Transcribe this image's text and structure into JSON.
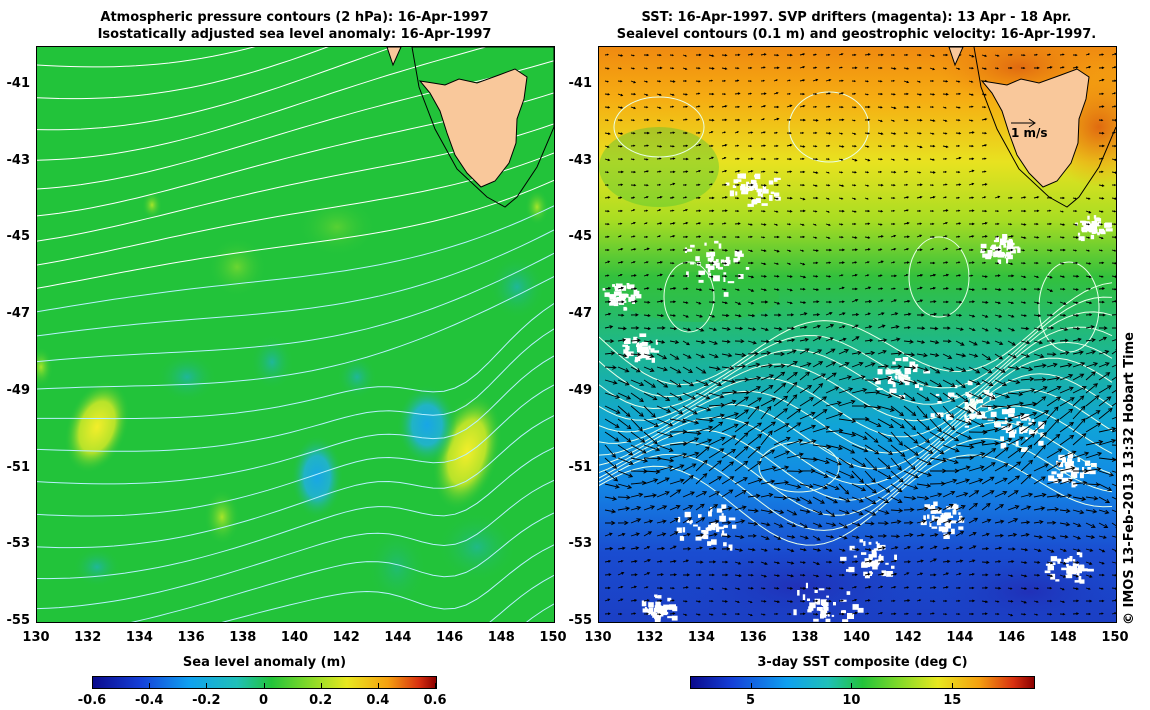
{
  "left_panel": {
    "title_line1": "Atmospheric pressure contours (2 hPa): 16-Apr-1997",
    "title_line2": "Isostatically adjusted sea level anomaly: 16-Apr-1997",
    "x_ticks": [
      "130",
      "132",
      "134",
      "136",
      "138",
      "140",
      "142",
      "144",
      "146",
      "148",
      "150"
    ],
    "y_ticks": [
      "-41",
      "-43",
      "-45",
      "-47",
      "-49",
      "-51",
      "-53",
      "-55"
    ],
    "colorbar": {
      "title": "Sea level anomaly (m)",
      "ticks": [
        "-0.6",
        "-0.4",
        "-0.2",
        "0",
        "0.2",
        "0.4",
        "0.6"
      ],
      "range": [
        -0.6,
        0.6
      ]
    }
  },
  "right_panel": {
    "title_line1": "SST: 16-Apr-1997. SVP drifters (magenta): 13 Apr - 18 Apr.",
    "title_line2": "Sealevel contours (0.1 m) and geostrophic velocity: 16-Apr-1997.",
    "x_ticks": [
      "130",
      "132",
      "134",
      "136",
      "138",
      "140",
      "142",
      "144",
      "146",
      "148",
      "150"
    ],
    "y_ticks": [
      "-41",
      "-43",
      "-45",
      "-47",
      "-49",
      "-51",
      "-53",
      "-55"
    ],
    "velocity_scale_label": "1 m/s",
    "colorbar": {
      "title": "3-day SST composite (deg C)",
      "ticks": [
        "5",
        "10",
        "15"
      ],
      "range": [
        2,
        19
      ]
    }
  },
  "credit": "© IMOS 13-Feb-2013 13:32 Hobart Time",
  "colors": {
    "land": "#f9c89b",
    "slaBackground": "#22c33a",
    "contour": "#ffffff",
    "arrow": "#000000"
  }
}
